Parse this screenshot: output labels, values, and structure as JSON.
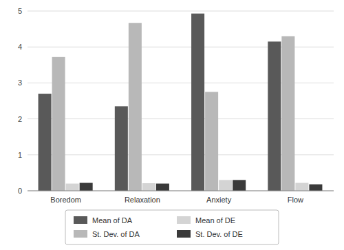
{
  "chart_data": {
    "type": "bar",
    "categories": [
      "Boredom",
      "Relaxation",
      "Anxiety",
      "Flow"
    ],
    "series": [
      {
        "name": "Mean of DA",
        "color": "#595959",
        "values": [
          2.7,
          2.35,
          4.93,
          4.15
        ]
      },
      {
        "name": "St. Dev. of DA",
        "color": "#b8b8b8",
        "values": [
          3.72,
          4.67,
          2.75,
          4.3
        ]
      },
      {
        "name": "Mean of DE",
        "color": "#d4d4d4",
        "values": [
          0.2,
          0.21,
          0.3,
          0.22
        ]
      },
      {
        "name": "St. Dev. of DE",
        "color": "#3a3a3a",
        "values": [
          0.22,
          0.2,
          0.3,
          0.18
        ]
      }
    ],
    "ylim": [
      0,
      5
    ],
    "yticks": [
      0,
      1,
      2,
      3,
      4,
      5
    ],
    "grid": true,
    "legend": "bottom"
  }
}
